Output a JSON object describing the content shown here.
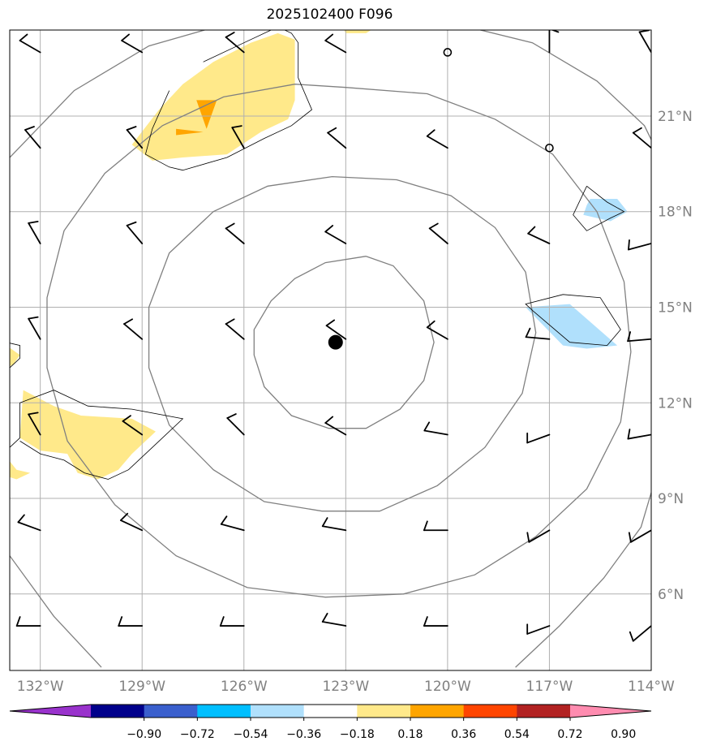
{
  "title": "2025102400 F096",
  "colors": {
    "grid": "#b0b0b0",
    "range_rings": "#808080",
    "axis_labels": "#808080",
    "frame": "#000000",
    "barbs": "#000000",
    "center_marker": "#000000"
  },
  "map": {
    "lon_range": [
      -132.9,
      -114.0
    ],
    "lat_range": [
      3.6,
      23.7
    ]
  },
  "lon_ticks": [
    {
      "value": -132,
      "label": "132°W"
    },
    {
      "value": -129,
      "label": "129°W"
    },
    {
      "value": -126,
      "label": "126°W"
    },
    {
      "value": -123,
      "label": "123°W"
    },
    {
      "value": -120,
      "label": "120°W"
    },
    {
      "value": -117,
      "label": "117°W"
    },
    {
      "value": -114,
      "label": "114°W"
    }
  ],
  "lat_ticks": [
    {
      "value": 21,
      "label": "21°N"
    },
    {
      "value": 18,
      "label": "18°N"
    },
    {
      "value": 15,
      "label": "15°N"
    },
    {
      "value": 12,
      "label": "12°N"
    },
    {
      "value": 9,
      "label": "9°N"
    },
    {
      "value": 6,
      "label": "6°N"
    }
  ],
  "storm_center": {
    "lon": -123.3,
    "lat": 13.9
  },
  "colorbar": {
    "boundaries": [
      "−0.90",
      "−0.72",
      "−0.54",
      "−0.36",
      "−0.18",
      "0.18",
      "0.36",
      "0.54",
      "0.72",
      "0.90"
    ],
    "colors": [
      "#9932cc",
      "#00008b",
      "#3a5fcd",
      "#00bfff",
      "#b0e0fc",
      "#ffffff",
      "#ffe98a",
      "#ffa500",
      "#ff4500",
      "#b22222",
      "#ff8cb0"
    ]
  },
  "shaded_areas": [
    {
      "level": "0.18–0.36",
      "color": "#ffe98a",
      "points": [
        [
          -126.9,
          22.7
        ],
        [
          -125.8,
          23.3
        ],
        [
          -125.0,
          23.6
        ],
        [
          -124.5,
          23.4
        ],
        [
          -124.5,
          21.5
        ],
        [
          -124.7,
          20.9
        ],
        [
          -125.5,
          20.5
        ],
        [
          -126.5,
          19.8
        ],
        [
          -127.8,
          19.7
        ],
        [
          -128.7,
          19.6
        ],
        [
          -129.3,
          20.1
        ],
        [
          -128.5,
          21.2
        ],
        [
          -127.8,
          22.0
        ]
      ]
    },
    {
      "level": "0.36–0.54",
      "color": "#ffa500",
      "points": [
        [
          -127.4,
          21.5
        ],
        [
          -126.8,
          21.5
        ],
        [
          -127.1,
          20.6
        ]
      ]
    },
    {
      "level": "0.36–0.54",
      "color": "#ffa500",
      "points": [
        [
          -128.0,
          20.6
        ],
        [
          -127.2,
          20.5
        ],
        [
          -128.0,
          20.4
        ]
      ]
    },
    {
      "level": "0.18–0.36",
      "color": "#ffe98a",
      "points": [
        [
          -123.2,
          24.0
        ],
        [
          -121.8,
          24.0
        ],
        [
          -122.4,
          23.6
        ],
        [
          -123.0,
          23.6
        ]
      ]
    },
    {
      "level": "0.18–0.36",
      "color": "#ffe98a",
      "points": [
        [
          -132.5,
          12.4
        ],
        [
          -131.6,
          11.9
        ],
        [
          -130.8,
          11.6
        ],
        [
          -129.3,
          11.5
        ],
        [
          -128.6,
          11.1
        ],
        [
          -129.3,
          10.4
        ],
        [
          -129.7,
          9.9
        ],
        [
          -130.3,
          9.6
        ],
        [
          -130.9,
          9.8
        ],
        [
          -131.2,
          10.4
        ],
        [
          -132.0,
          10.5
        ],
        [
          -132.6,
          10.9
        ]
      ]
    },
    {
      "level": "0.18–0.36",
      "color": "#ffe98a",
      "points": [
        [
          -133.0,
          10.3
        ],
        [
          -132.7,
          9.9
        ],
        [
          -132.3,
          9.8
        ],
        [
          -132.7,
          9.6
        ],
        [
          -133.0,
          9.7
        ]
      ]
    },
    {
      "level": "0.18–0.36",
      "color": "#ffe98a",
      "points": [
        [
          -133.0,
          13.8
        ],
        [
          -132.6,
          13.5
        ],
        [
          -132.8,
          13.2
        ],
        [
          -133.0,
          13.1
        ]
      ]
    },
    {
      "level": "−0.36–−0.18",
      "color": "#b0e0fc",
      "points": [
        [
          -116.4,
          15.1
        ],
        [
          -115.0,
          13.8
        ],
        [
          -115.9,
          13.7
        ],
        [
          -116.6,
          13.8
        ],
        [
          -117.7,
          15.0
        ]
      ]
    },
    {
      "level": "−0.36–−0.18",
      "color": "#b0e0fc",
      "points": [
        [
          -115.8,
          18.4
        ],
        [
          -115.0,
          18.4
        ],
        [
          -114.7,
          18.0
        ],
        [
          -115.2,
          17.7
        ],
        [
          -116.0,
          17.9
        ],
        [
          -115.9,
          18.2
        ]
      ]
    }
  ],
  "contour_lines": [
    {
      "points": [
        [
          -127.2,
          22.7
        ],
        [
          -126.0,
          23.3
        ],
        [
          -125.0,
          23.8
        ],
        [
          -124.6,
          23.6
        ],
        [
          -124.4,
          23.3
        ],
        [
          -124.4,
          22.2
        ],
        [
          -124.0,
          21.2
        ],
        [
          -124.6,
          20.7
        ],
        [
          -125.4,
          20.3
        ],
        [
          -126.5,
          19.7
        ],
        [
          -127.8,
          19.3
        ],
        [
          -128.2,
          19.4
        ],
        [
          -128.9,
          19.8
        ],
        [
          -128.7,
          20.6
        ],
        [
          -128.2,
          21.8
        ]
      ]
    },
    {
      "points": [
        [
          -133.0,
          10.5
        ],
        [
          -132.6,
          10.9
        ],
        [
          -132.6,
          12.0
        ],
        [
          -131.6,
          12.4
        ],
        [
          -130.6,
          11.9
        ],
        [
          -129.3,
          11.8
        ],
        [
          -127.8,
          11.5
        ],
        [
          -128.6,
          10.7
        ],
        [
          -129.4,
          9.9
        ],
        [
          -130.0,
          9.6
        ],
        [
          -130.7,
          9.8
        ],
        [
          -131.3,
          10.2
        ],
        [
          -132.0,
          10.4
        ],
        [
          -132.6,
          10.8
        ]
      ]
    },
    {
      "points": [
        [
          -133.0,
          13.0
        ],
        [
          -132.6,
          13.4
        ],
        [
          -132.6,
          13.8
        ],
        [
          -133.0,
          13.9
        ]
      ]
    },
    {
      "points": [
        [
          -116.6,
          15.4
        ],
        [
          -115.5,
          15.3
        ],
        [
          -114.9,
          14.3
        ],
        [
          -115.3,
          13.8
        ],
        [
          -116.4,
          13.9
        ],
        [
          -117.5,
          14.9
        ],
        [
          -117.7,
          15.1
        ],
        [
          -116.6,
          15.4
        ]
      ]
    },
    {
      "points": [
        [
          -115.9,
          18.8
        ],
        [
          -115.3,
          18.3
        ],
        [
          -114.8,
          18.0
        ],
        [
          -115.2,
          17.8
        ],
        [
          -115.9,
          17.4
        ],
        [
          -116.3,
          17.9
        ],
        [
          -115.9,
          18.8
        ]
      ]
    }
  ],
  "range_rings": [
    {
      "points": [
        [
          -122.4,
          16.6
        ],
        [
          -121.6,
          16.3
        ],
        [
          -120.7,
          15.2
        ],
        [
          -120.4,
          13.9
        ],
        [
          -120.7,
          12.7
        ],
        [
          -121.4,
          11.8
        ],
        [
          -122.4,
          11.2
        ],
        [
          -123.5,
          11.2
        ],
        [
          -124.6,
          11.6
        ],
        [
          -125.4,
          12.5
        ],
        [
          -125.7,
          13.5
        ],
        [
          -125.7,
          14.3
        ],
        [
          -125.2,
          15.2
        ],
        [
          -124.5,
          15.9
        ],
        [
          -123.6,
          16.4
        ],
        [
          -122.4,
          16.6
        ]
      ]
    },
    {
      "points": [
        [
          -123.4,
          19.1
        ],
        [
          -121.5,
          19.0
        ],
        [
          -119.9,
          18.5
        ],
        [
          -118.6,
          17.5
        ],
        [
          -117.7,
          16.1
        ],
        [
          -117.4,
          14.2
        ],
        [
          -117.8,
          12.3
        ],
        [
          -118.9,
          10.6
        ],
        [
          -120.3,
          9.4
        ],
        [
          -122.0,
          8.6
        ],
        [
          -123.7,
          8.6
        ],
        [
          -125.4,
          8.9
        ],
        [
          -126.9,
          9.9
        ],
        [
          -128.2,
          11.3
        ],
        [
          -128.8,
          13.1
        ],
        [
          -128.8,
          15.0
        ],
        [
          -128.2,
          16.7
        ],
        [
          -126.9,
          18.0
        ],
        [
          -125.3,
          18.8
        ],
        [
          -123.4,
          19.1
        ]
      ]
    },
    {
      "points": [
        [
          -123.0,
          21.9
        ],
        [
          -120.6,
          21.7
        ],
        [
          -118.6,
          20.9
        ],
        [
          -116.9,
          19.8
        ],
        [
          -115.6,
          18.0
        ],
        [
          -114.8,
          15.8
        ],
        [
          -114.6,
          13.6
        ],
        [
          -114.9,
          11.4
        ],
        [
          -115.9,
          9.3
        ],
        [
          -117.4,
          7.8
        ],
        [
          -119.2,
          6.6
        ],
        [
          -121.3,
          6.0
        ],
        [
          -123.6,
          5.9
        ],
        [
          -125.9,
          6.2
        ],
        [
          -128.0,
          7.2
        ],
        [
          -129.8,
          8.8
        ],
        [
          -131.2,
          10.8
        ],
        [
          -131.8,
          13.1
        ],
        [
          -131.8,
          15.3
        ],
        [
          -131.3,
          17.4
        ],
        [
          -130.1,
          19.2
        ],
        [
          -128.4,
          20.7
        ],
        [
          -126.6,
          21.6
        ],
        [
          -124.5,
          22.0
        ],
        [
          -123.0,
          21.9
        ]
      ]
    },
    {
      "points": [
        [
          -126.5,
          23.9
        ],
        [
          -128.8,
          23.2
        ],
        [
          -131.0,
          21.8
        ],
        [
          -132.9,
          19.7
        ]
      ]
    },
    {
      "points": [
        [
          -119.8,
          23.9
        ],
        [
          -117.5,
          23.3
        ],
        [
          -115.6,
          22.1
        ],
        [
          -114.2,
          20.7
        ],
        [
          -113.7,
          19.6
        ]
      ]
    },
    {
      "points": [
        [
          -113.8,
          9.9
        ],
        [
          -114.3,
          8.1
        ],
        [
          -115.4,
          6.5
        ],
        [
          -116.7,
          5.0
        ],
        [
          -118.0,
          3.7
        ]
      ]
    },
    {
      "points": [
        [
          -130.2,
          3.7
        ],
        [
          -131.6,
          5.3
        ],
        [
          -132.9,
          7.2
        ]
      ]
    }
  ],
  "wind_barbs": [
    {
      "lon": -132,
      "lat": 23,
      "dir": 300,
      "speed": 10
    },
    {
      "lon": -129,
      "lat": 23,
      "dir": 300,
      "speed": 10
    },
    {
      "lon": -126,
      "lat": 23,
      "dir": 310,
      "speed": 10
    },
    {
      "lon": -123,
      "lat": 23,
      "dir": 300,
      "speed": 10
    },
    {
      "lon": -120,
      "lat": 23,
      "calm": true
    },
    {
      "lon": -117,
      "lat": 23,
      "dir": 360,
      "speed": 10
    },
    {
      "lon": -114,
      "lat": 23,
      "dir": 330,
      "speed": 10
    },
    {
      "lon": -132,
      "lat": 20,
      "dir": 320,
      "speed": 10
    },
    {
      "lon": -129,
      "lat": 20,
      "dir": 320,
      "speed": 10
    },
    {
      "lon": -126,
      "lat": 20,
      "dir": 330,
      "speed": 10
    },
    {
      "lon": -123,
      "lat": 20,
      "dir": 310,
      "speed": 10
    },
    {
      "lon": -120,
      "lat": 20,
      "dir": 300,
      "speed": 10
    },
    {
      "lon": -117,
      "lat": 20,
      "calm": true
    },
    {
      "lon": -114,
      "lat": 20,
      "dir": 310,
      "speed": 10
    },
    {
      "lon": -132,
      "lat": 17,
      "dir": 330,
      "speed": 10
    },
    {
      "lon": -129,
      "lat": 17,
      "dir": 320,
      "speed": 10
    },
    {
      "lon": -126,
      "lat": 17,
      "dir": 310,
      "speed": 10
    },
    {
      "lon": -123,
      "lat": 17,
      "dir": 300,
      "speed": 10
    },
    {
      "lon": -120,
      "lat": 17,
      "dir": 310,
      "speed": 10
    },
    {
      "lon": -117,
      "lat": 17,
      "dir": 295,
      "speed": 10
    },
    {
      "lon": -114,
      "lat": 17,
      "dir": 255,
      "speed": 10
    },
    {
      "lon": -132,
      "lat": 14,
      "dir": 330,
      "speed": 10
    },
    {
      "lon": -129,
      "lat": 14,
      "dir": 310,
      "speed": 10
    },
    {
      "lon": -126,
      "lat": 14,
      "dir": 310,
      "speed": 10
    },
    {
      "lon": -123,
      "lat": 14,
      "dir": 305,
      "speed": 10
    },
    {
      "lon": -120,
      "lat": 14,
      "dir": 300,
      "speed": 10
    },
    {
      "lon": -117,
      "lat": 14,
      "dir": 275,
      "speed": 10
    },
    {
      "lon": -114,
      "lat": 14,
      "dir": 265,
      "speed": 10
    },
    {
      "lon": -132,
      "lat": 11,
      "dir": 330,
      "speed": 10
    },
    {
      "lon": -129,
      "lat": 11,
      "dir": 305,
      "speed": 10
    },
    {
      "lon": -126,
      "lat": 11,
      "dir": 315,
      "speed": 10
    },
    {
      "lon": -123,
      "lat": 11,
      "dir": 300,
      "speed": 10
    },
    {
      "lon": -120,
      "lat": 11,
      "dir": 280,
      "speed": 10
    },
    {
      "lon": -117,
      "lat": 11,
      "dir": 250,
      "speed": 10
    },
    {
      "lon": -114,
      "lat": 11,
      "dir": 260,
      "speed": 10
    },
    {
      "lon": -132,
      "lat": 8,
      "dir": 290,
      "speed": 10
    },
    {
      "lon": -129,
      "lat": 8,
      "dir": 295,
      "speed": 10
    },
    {
      "lon": -126,
      "lat": 8,
      "dir": 285,
      "speed": 10
    },
    {
      "lon": -123,
      "lat": 8,
      "dir": 280,
      "speed": 10
    },
    {
      "lon": -120,
      "lat": 8,
      "dir": 270,
      "speed": 10
    },
    {
      "lon": -117,
      "lat": 8,
      "dir": 240,
      "speed": 10
    },
    {
      "lon": -114,
      "lat": 8,
      "dir": 240,
      "speed": 10
    },
    {
      "lon": -132,
      "lat": 5,
      "dir": 270,
      "speed": 10
    },
    {
      "lon": -129,
      "lat": 5,
      "dir": 270,
      "speed": 10
    },
    {
      "lon": -126,
      "lat": 5,
      "dir": 270,
      "speed": 10
    },
    {
      "lon": -123,
      "lat": 5,
      "dir": 280,
      "speed": 10
    },
    {
      "lon": -120,
      "lat": 5,
      "dir": 270,
      "speed": 10
    },
    {
      "lon": -117,
      "lat": 5,
      "dir": 250,
      "speed": 10
    },
    {
      "lon": -114,
      "lat": 5,
      "dir": 230,
      "speed": 10
    }
  ]
}
